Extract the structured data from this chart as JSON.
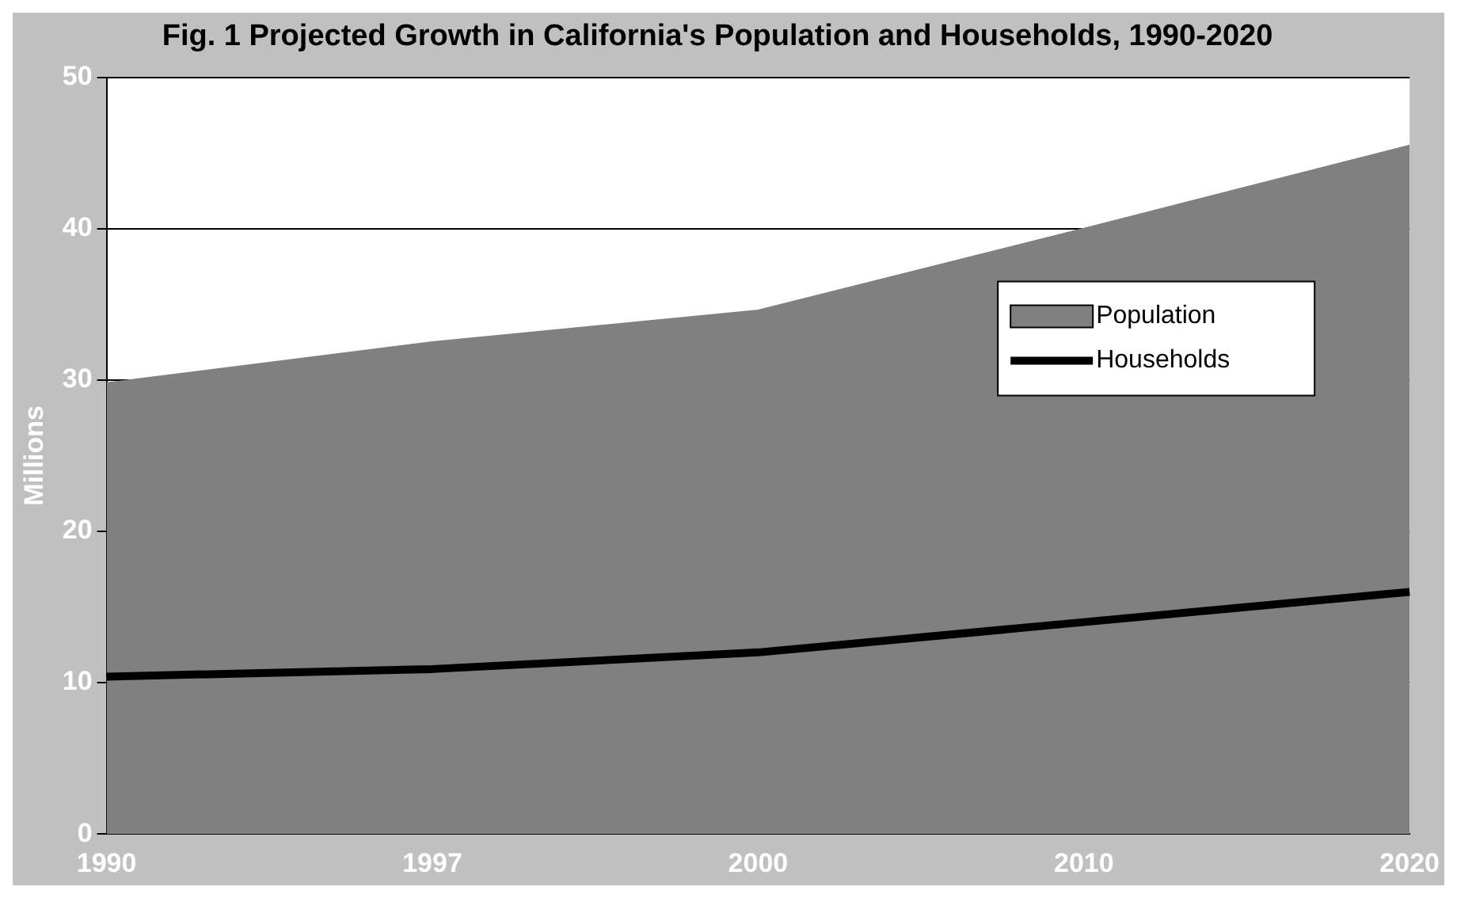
{
  "chart_data": {
    "type": "area",
    "title": "Fig. 1 Projected Growth in California's Population and Households, 1990-2020",
    "ylabel": "Millions",
    "categories": [
      "1990",
      "1997",
      "2000",
      "2010",
      "2020"
    ],
    "series": [
      {
        "name": "Population",
        "color": "#808080",
        "values": [
          29.8,
          32.5,
          34.6,
          40,
          45.5
        ]
      },
      {
        "name": "Households",
        "type": "line",
        "color": "#000000",
        "values": [
          10.4,
          10.9,
          12,
          14,
          16
        ]
      }
    ],
    "ylim": [
      0,
      50
    ],
    "yticks": [
      0,
      10,
      20,
      30,
      40,
      50
    ],
    "grid": "y",
    "legend": "right"
  }
}
